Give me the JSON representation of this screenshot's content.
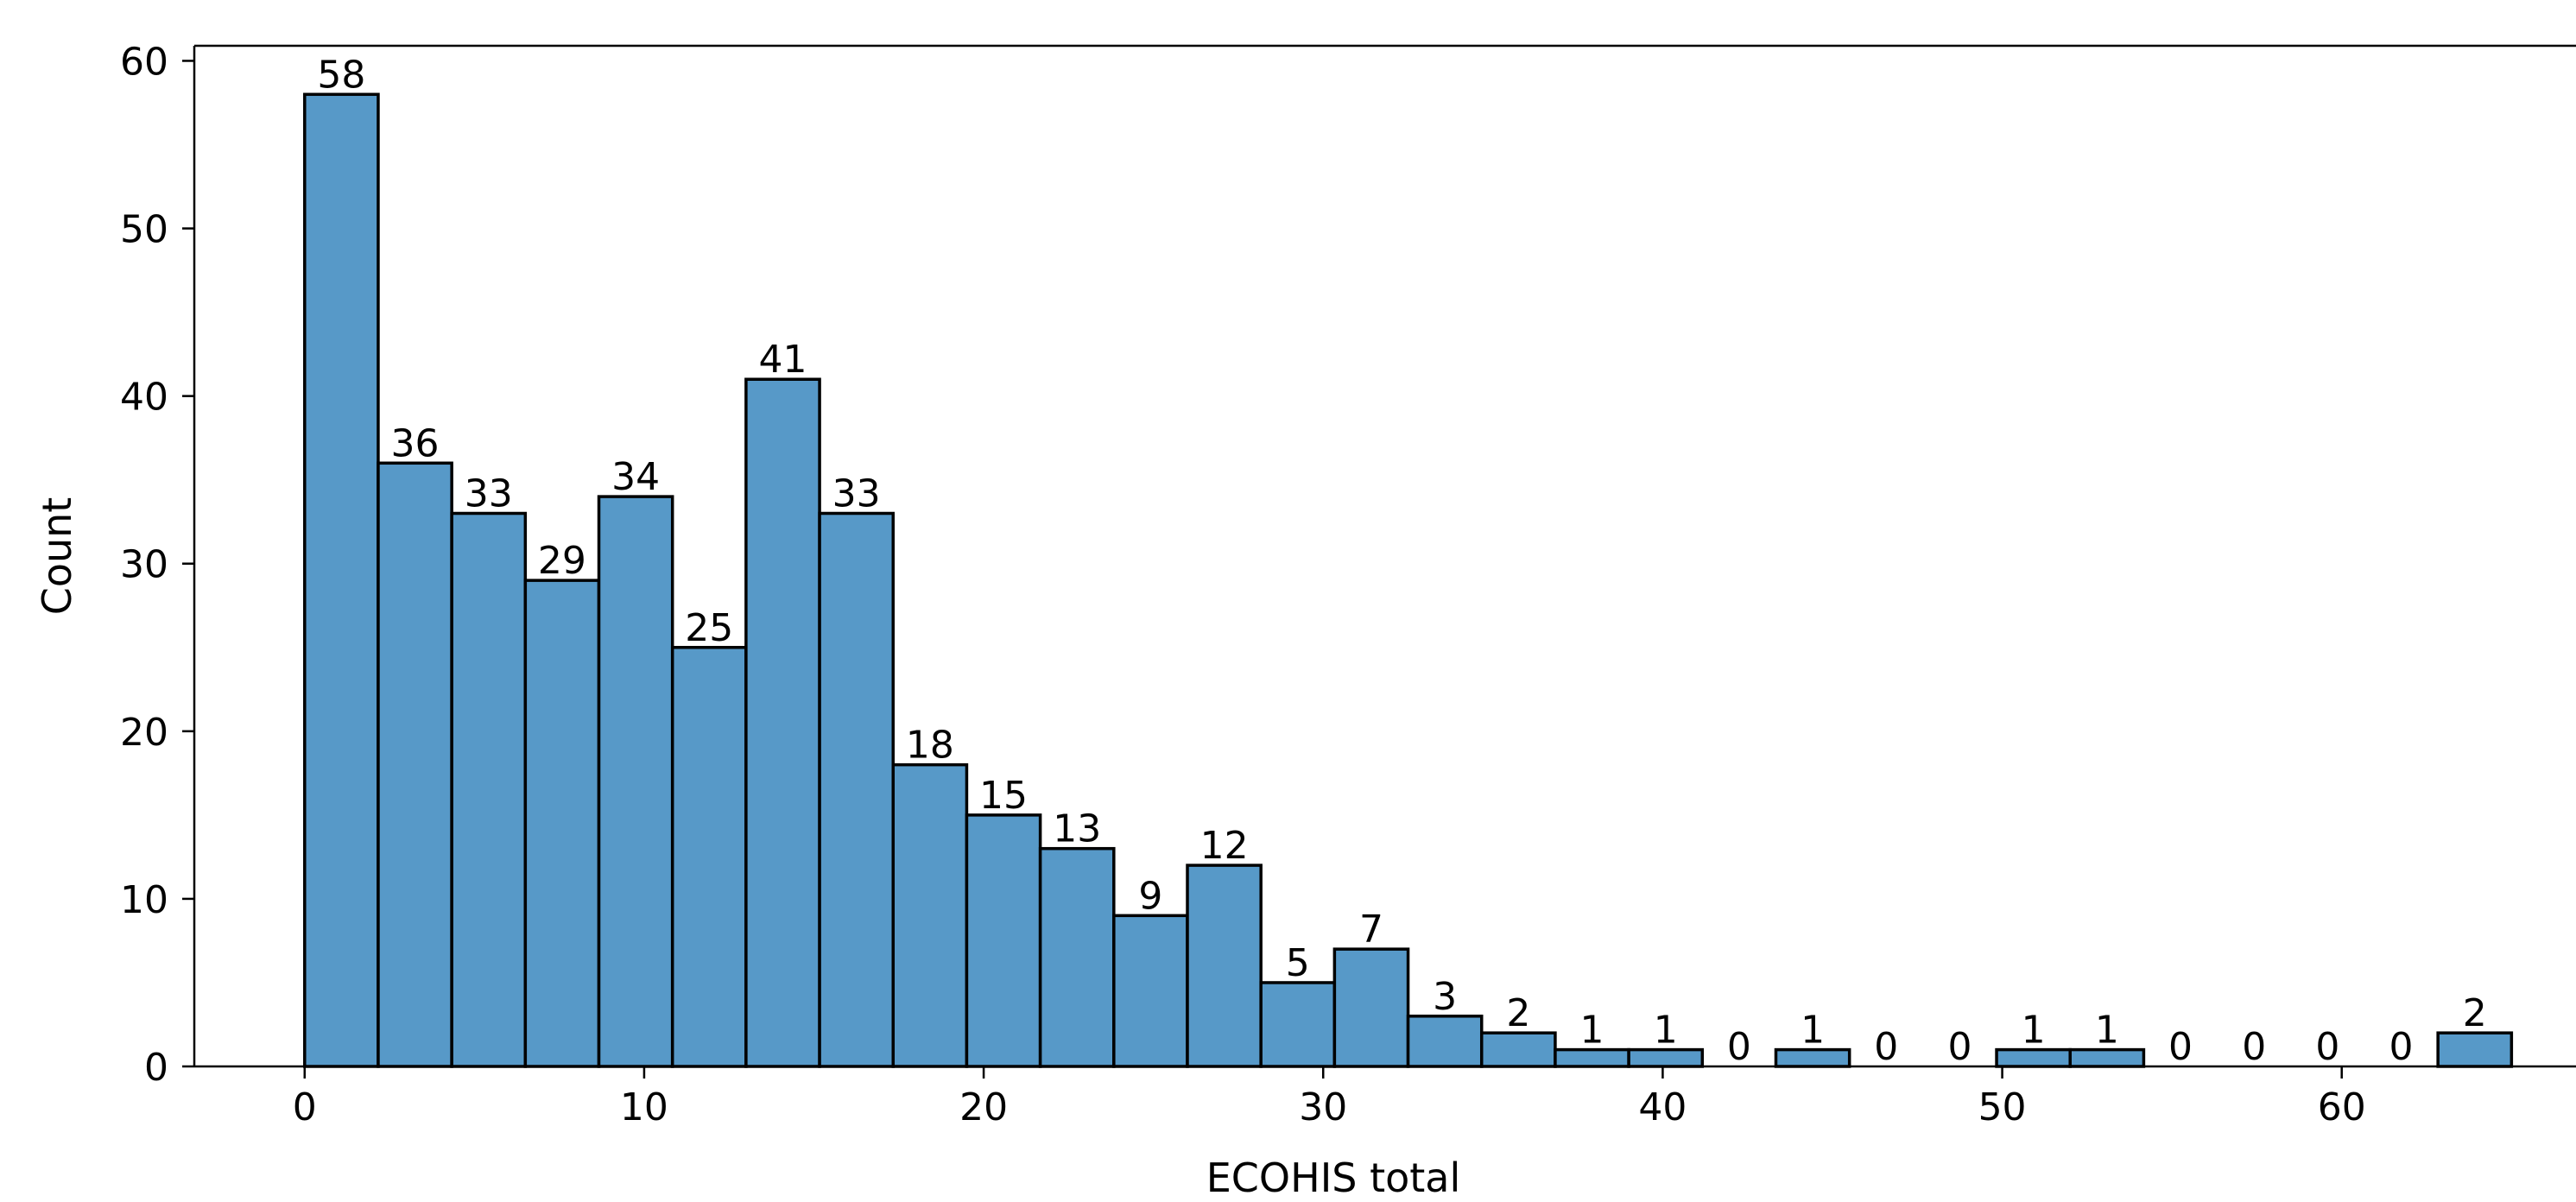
{
  "chart_data": {
    "type": "bar",
    "subtype": "histogram",
    "xlabel": "ECOHIS total",
    "ylabel": "Count",
    "bin_start": 0,
    "bin_width": 2.1667,
    "bins": 30,
    "values": [
      58,
      36,
      33,
      29,
      34,
      25,
      41,
      33,
      18,
      15,
      13,
      9,
      12,
      5,
      7,
      3,
      2,
      1,
      1,
      0,
      1,
      0,
      0,
      1,
      1,
      0,
      0,
      0,
      0,
      2
    ],
    "data_labels": [
      "58",
      "36",
      "33",
      "29",
      "34",
      "25",
      "41",
      "33",
      "18",
      "15",
      "13",
      "9",
      "12",
      "5",
      "7",
      "3",
      "2",
      "1",
      "1",
      "0",
      "1",
      "0",
      "0",
      "1",
      "1",
      "0",
      "0",
      "0",
      "0",
      "2"
    ],
    "xlim": [
      -3.25,
      66.9
    ],
    "ylim": [
      0,
      60.9
    ],
    "x_ticks": [
      0,
      10,
      20,
      30,
      40,
      50,
      60
    ],
    "x_tick_labels": [
      "0",
      "10",
      "20",
      "30",
      "40",
      "50",
      "60"
    ],
    "y_ticks": [
      0,
      10,
      20,
      30,
      40,
      50,
      60
    ],
    "y_tick_labels": [
      "0",
      "10",
      "20",
      "30",
      "40",
      "50",
      "60"
    ],
    "grid": false,
    "legend": false,
    "bar_color": "#5799c8",
    "edge_color": "#000000"
  }
}
